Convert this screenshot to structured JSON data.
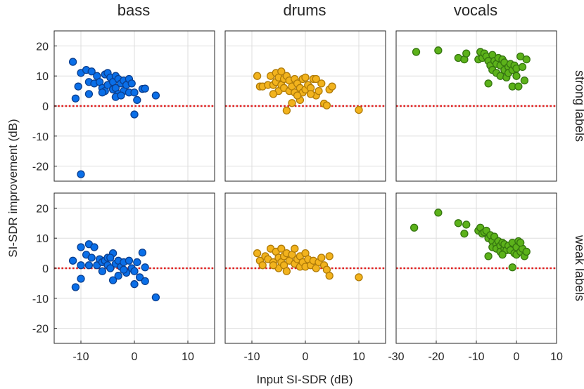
{
  "figure": {
    "ylabel": "SI-SDR improvement (dB)",
    "xlabel": "Input SI-SDR (dB)",
    "columns": [
      "bass",
      "drums",
      "vocals"
    ],
    "rows": [
      "strong labels",
      "weak labels"
    ]
  },
  "chart_data": {
    "type": "scatter",
    "ylim": [
      -25,
      25
    ],
    "yticks": [
      -20,
      -10,
      0,
      10,
      20
    ],
    "reference_line": {
      "y": 0,
      "style": "dotted",
      "color": "#e02020"
    },
    "grid": true,
    "columns": [
      {
        "name": "bass",
        "xlim": [
          -15,
          15
        ],
        "xticks": [
          -10,
          0,
          10
        ],
        "color": "#0a6fe8",
        "edge": "#0b3f8f"
      },
      {
        "name": "drums",
        "xlim": [
          -15,
          15
        ],
        "xticks": [
          -10,
          0,
          10
        ],
        "color": "#f2b31d",
        "edge": "#b07b08"
      },
      {
        "name": "vocals",
        "xlim": [
          -30,
          10
        ],
        "xticks": [
          -30,
          -20,
          -10,
          0,
          10
        ],
        "color": "#5cb21a",
        "edge": "#357510"
      }
    ],
    "panels": [
      {
        "column": "bass",
        "row": "strong labels",
        "points": [
          [
            -11.5,
            14.7
          ],
          [
            -10,
            -22.7
          ],
          [
            -10,
            11
          ],
          [
            -10.5,
            6.5
          ],
          [
            -9,
            12
          ],
          [
            -8.5,
            8
          ],
          [
            -8,
            11.5
          ],
          [
            -7.5,
            7.5
          ],
          [
            -7,
            10
          ],
          [
            -6.5,
            8
          ],
          [
            -6,
            6
          ],
          [
            -5.5,
            10.5
          ],
          [
            -5.5,
            5
          ],
          [
            -5,
            11
          ],
          [
            -5,
            7
          ],
          [
            -4.5,
            9.5
          ],
          [
            -4,
            8
          ],
          [
            -4,
            5.5
          ],
          [
            -3.5,
            10
          ],
          [
            -3.5,
            6
          ],
          [
            -3,
            9
          ],
          [
            -3,
            4
          ],
          [
            -2.5,
            7.5
          ],
          [
            -2,
            5
          ],
          [
            -2,
            8.5
          ],
          [
            -1.5,
            7
          ],
          [
            -1,
            4.5
          ],
          [
            -1,
            9
          ],
          [
            -0.5,
            7.5
          ],
          [
            0,
            4.5
          ],
          [
            0,
            -2.8
          ],
          [
            0.5,
            2
          ],
          [
            1.5,
            5.7
          ],
          [
            2,
            5.8
          ],
          [
            4,
            3.5
          ],
          [
            -3.5,
            3
          ],
          [
            -6,
            4.5
          ],
          [
            -8.5,
            4
          ],
          [
            -11,
            2.5
          ],
          [
            -2.5,
            3.5
          ]
        ]
      },
      {
        "column": "bass",
        "row": "weak labels",
        "points": [
          [
            -11.5,
            2.5
          ],
          [
            -11,
            -6.3
          ],
          [
            -10,
            -3.5
          ],
          [
            -10,
            1
          ],
          [
            -10,
            7
          ],
          [
            -9,
            4.5
          ],
          [
            -8.5,
            8
          ],
          [
            -8,
            3.5
          ],
          [
            -7.5,
            7
          ],
          [
            -7,
            1
          ],
          [
            -6.5,
            3
          ],
          [
            -6,
            2
          ],
          [
            -5.5,
            2.5
          ],
          [
            -5,
            1
          ],
          [
            -5,
            3.5
          ],
          [
            -4.5,
            0
          ],
          [
            -4,
            -4
          ],
          [
            -4,
            5
          ],
          [
            -3.5,
            1.5
          ],
          [
            -3,
            2.5
          ],
          [
            -3,
            -2.5
          ],
          [
            -2.5,
            0.5
          ],
          [
            -2,
            2
          ],
          [
            -1.5,
            -1.5
          ],
          [
            -1,
            2.5
          ],
          [
            -0.5,
            0
          ],
          [
            0,
            -5.3
          ],
          [
            0,
            -1
          ],
          [
            0.5,
            2
          ],
          [
            1,
            -3
          ],
          [
            1.5,
            5.2
          ],
          [
            2,
            -4.3
          ],
          [
            2,
            0.3
          ],
          [
            4,
            -9.7
          ],
          [
            -8.5,
            1
          ],
          [
            -6,
            -1
          ],
          [
            -4.5,
            3.5
          ],
          [
            -2,
            -0.5
          ]
        ]
      },
      {
        "column": "drums",
        "row": "strong labels",
        "points": [
          [
            -9,
            10
          ],
          [
            -8.5,
            6.5
          ],
          [
            -8,
            6.5
          ],
          [
            -7,
            7
          ],
          [
            -6.5,
            10
          ],
          [
            -6,
            7
          ],
          [
            -5.5,
            11
          ],
          [
            -5.5,
            8
          ],
          [
            -5,
            9.5
          ],
          [
            -5,
            5
          ],
          [
            -4.5,
            11.5
          ],
          [
            -4.5,
            7
          ],
          [
            -4,
            9
          ],
          [
            -4,
            6
          ],
          [
            -3.5,
            -1.5
          ],
          [
            -3.5,
            10
          ],
          [
            -3,
            5
          ],
          [
            -3,
            8.5
          ],
          [
            -2.5,
            1
          ],
          [
            -2.5,
            6.5
          ],
          [
            -2,
            9
          ],
          [
            -2,
            4.5
          ],
          [
            -1.5,
            7.5
          ],
          [
            -1,
            6
          ],
          [
            -1,
            2
          ],
          [
            -0.5,
            9
          ],
          [
            -0.5,
            4.5
          ],
          [
            0,
            5.5
          ],
          [
            0,
            9.5
          ],
          [
            0.5,
            7
          ],
          [
            1,
            6
          ],
          [
            1.5,
            9
          ],
          [
            2,
            3.5
          ],
          [
            2,
            9
          ],
          [
            2.5,
            5
          ],
          [
            3,
            7.5
          ],
          [
            3.5,
            0.8
          ],
          [
            4,
            0.2
          ],
          [
            4.5,
            5.5
          ],
          [
            5,
            6.5
          ],
          [
            10,
            -1.3
          ],
          [
            -6,
            4
          ],
          [
            -1.5,
            3.5
          ],
          [
            1,
            4
          ]
        ]
      },
      {
        "column": "drums",
        "row": "weak labels",
        "points": [
          [
            -9,
            5
          ],
          [
            -8.5,
            2.5
          ],
          [
            -8,
            1
          ],
          [
            -7.5,
            4
          ],
          [
            -7,
            3
          ],
          [
            -6.5,
            6.5
          ],
          [
            -6,
            2
          ],
          [
            -5.5,
            5.5
          ],
          [
            -5,
            3.5
          ],
          [
            -5,
            0
          ],
          [
            -4.5,
            6.5
          ],
          [
            -4.5,
            2
          ],
          [
            -4,
            4
          ],
          [
            -4,
            1
          ],
          [
            -3.5,
            -1
          ],
          [
            -3.5,
            5
          ],
          [
            -3,
            2.5
          ],
          [
            -2.5,
            4.5
          ],
          [
            -2,
            1.5
          ],
          [
            -2,
            6.5
          ],
          [
            -1.5,
            3
          ],
          [
            -1,
            0.5
          ],
          [
            -1,
            4
          ],
          [
            -0.5,
            2
          ],
          [
            0,
            5
          ],
          [
            0,
            0.5
          ],
          [
            0.5,
            3
          ],
          [
            1,
            1
          ],
          [
            1.5,
            2.5
          ],
          [
            2,
            0
          ],
          [
            2.5,
            2
          ],
          [
            3,
            3.5
          ],
          [
            3.5,
            1
          ],
          [
            4,
            -0.5
          ],
          [
            4.5,
            4
          ],
          [
            4.5,
            -2.5
          ],
          [
            10,
            -3
          ],
          [
            -6,
            1
          ]
        ]
      },
      {
        "column": "vocals",
        "row": "strong labels",
        "points": [
          [
            -25,
            18
          ],
          [
            -19.5,
            18.5
          ],
          [
            -14.5,
            16
          ],
          [
            -13,
            15.5
          ],
          [
            -12.5,
            17.5
          ],
          [
            -9.5,
            15.5
          ],
          [
            -9,
            18
          ],
          [
            -8.5,
            16
          ],
          [
            -8,
            17.5
          ],
          [
            -7.5,
            16.5
          ],
          [
            -7,
            15
          ],
          [
            -7,
            7.5
          ],
          [
            -6.5,
            13.5
          ],
          [
            -6,
            17
          ],
          [
            -6,
            12
          ],
          [
            -5.5,
            15
          ],
          [
            -5,
            11
          ],
          [
            -5,
            14
          ],
          [
            -4.5,
            16
          ],
          [
            -4,
            13.5
          ],
          [
            -4,
            10
          ],
          [
            -3.5,
            15.5
          ],
          [
            -3,
            12
          ],
          [
            -3,
            14.5
          ],
          [
            -2.5,
            9.5
          ],
          [
            -2,
            13
          ],
          [
            -2,
            11
          ],
          [
            -1.5,
            14
          ],
          [
            -1,
            12
          ],
          [
            -1,
            6.5
          ],
          [
            -0.5,
            13.5
          ],
          [
            0,
            10
          ],
          [
            0,
            12.5
          ],
          [
            0.5,
            6.5
          ],
          [
            1,
            16.5
          ],
          [
            1.5,
            13
          ],
          [
            2,
            8.5
          ],
          [
            2.5,
            15.5
          ]
        ]
      },
      {
        "column": "vocals",
        "row": "weak labels",
        "points": [
          [
            -25.5,
            13.5
          ],
          [
            -19.5,
            18.5
          ],
          [
            -14.5,
            15
          ],
          [
            -13,
            11.5
          ],
          [
            -12.5,
            14.5
          ],
          [
            -9.5,
            12.5
          ],
          [
            -9,
            13.5
          ],
          [
            -8.5,
            11.5
          ],
          [
            -8,
            12
          ],
          [
            -7.5,
            12.5
          ],
          [
            -7,
            10
          ],
          [
            -7,
            4
          ],
          [
            -6.5,
            11
          ],
          [
            -6,
            9
          ],
          [
            -6,
            7
          ],
          [
            -5.5,
            10.5
          ],
          [
            -5,
            8
          ],
          [
            -5,
            6.5
          ],
          [
            -4.5,
            9
          ],
          [
            -4,
            7.5
          ],
          [
            -4,
            5.5
          ],
          [
            -3.5,
            8.5
          ],
          [
            -3,
            6.5
          ],
          [
            -3,
            8
          ],
          [
            -2.5,
            6
          ],
          [
            -2,
            7.5
          ],
          [
            -1.5,
            6
          ],
          [
            -1,
            8.5
          ],
          [
            -1,
            0.3
          ],
          [
            -0.5,
            5
          ],
          [
            0,
            7
          ],
          [
            0,
            4.5
          ],
          [
            0.5,
            9
          ],
          [
            1,
            5.5
          ],
          [
            1.5,
            6.5
          ],
          [
            2,
            4
          ],
          [
            2.5,
            5.5
          ],
          [
            -3.5,
            4.5
          ],
          [
            1,
            8.5
          ]
        ]
      }
    ]
  }
}
